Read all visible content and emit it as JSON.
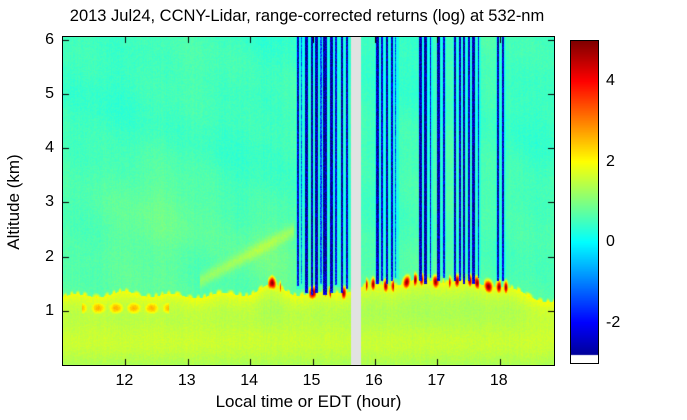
{
  "chart_data": {
    "type": "heatmap",
    "title": "2013 Jul24, CCNY-Lidar, range-corrected returns (log) at 532-nm",
    "xlabel": "Local time or EDT (hour)",
    "ylabel": "Altitude (km)",
    "xlim": [
      11.0,
      18.87
    ],
    "ylim": [
      0.0,
      6.05
    ],
    "xticks": [
      12,
      13,
      14,
      15,
      16,
      17,
      18
    ],
    "yticks": [
      1,
      2,
      3,
      4,
      5,
      6
    ],
    "clim": [
      -3,
      5
    ],
    "colormap": "jet",
    "grid": false,
    "legend": false,
    "colorbar": {
      "position": "right",
      "ticks": [
        4,
        2,
        0,
        -2
      ],
      "white_base": true
    },
    "field": {
      "description": "log range-corrected lidar backscatter: cyan clear-air background (~0.5), green-yellow aerosol boundary layer below ~1.5 km with bright yellow top edge, dark-red cloud-base peaks near 1.3-1.6 km, dark-blue vertical attenuation streaks above clouds, light-gray missing-data column near 15.7 h",
      "background_value": 0.48,
      "background_boost_near_layer": 0.24,
      "boundary_layer": {
        "hours": [
          11.0,
          12.0,
          13.0,
          14.0,
          14.35,
          14.7,
          15.1,
          15.6,
          16.0,
          16.5,
          17.0,
          17.5,
          18.0,
          18.4,
          18.87
        ],
        "top_km": [
          1.25,
          1.32,
          1.26,
          1.32,
          1.48,
          1.32,
          1.3,
          1.38,
          1.46,
          1.52,
          1.56,
          1.52,
          1.46,
          1.3,
          1.15
        ],
        "edge_value": 2.1,
        "interior_base": 1.15,
        "interior_edge_boost": 0.75
      },
      "ground_glow": {
        "alt_km": 0.4,
        "sigma_km": 0.45,
        "amplitude": 0.4
      },
      "warm_patch": {
        "hours": [
          11.3,
          12.7
        ],
        "alt_km": 1.05,
        "sigma_km": 0.16,
        "value": 2.6
      },
      "red_peak_value": 4.9,
      "red_peak_intervals_hours": [
        [
          14.28,
          14.5
        ],
        [
          14.95,
          15.05
        ],
        [
          15.2,
          15.3
        ],
        [
          15.45,
          15.58
        ],
        [
          15.85,
          16.0
        ],
        [
          16.1,
          16.3
        ],
        [
          16.42,
          16.58
        ],
        [
          16.62,
          16.78
        ],
        [
          16.9,
          17.1
        ],
        [
          17.18,
          17.38
        ],
        [
          17.48,
          17.66
        ],
        [
          17.74,
          18.02
        ],
        [
          18.06,
          18.16
        ]
      ],
      "cloud_streaks": [
        [
          14.76,
          0.03,
          -2.4,
          1.45
        ],
        [
          14.82,
          0.02,
          -1.2,
          1.5
        ],
        [
          14.9,
          0.05,
          -2.6,
          1.32
        ],
        [
          14.99,
          0.03,
          -2.6,
          1.3
        ],
        [
          15.06,
          0.04,
          -2.6,
          1.33
        ],
        [
          15.14,
          0.03,
          -1.4,
          1.5
        ],
        [
          15.2,
          0.05,
          -2.7,
          1.3
        ],
        [
          15.3,
          0.04,
          -2.6,
          1.33
        ],
        [
          15.38,
          0.03,
          -2.2,
          1.48
        ],
        [
          15.47,
          0.04,
          -2.6,
          1.33
        ],
        [
          15.55,
          0.03,
          -2.4,
          1.4
        ],
        [
          16.04,
          0.04,
          -2.6,
          1.5
        ],
        [
          16.12,
          0.03,
          -2.3,
          1.55
        ],
        [
          16.19,
          0.04,
          -2.6,
          1.5
        ],
        [
          16.27,
          0.03,
          -2.4,
          1.55
        ],
        [
          16.33,
          0.03,
          -1.5,
          1.6
        ],
        [
          16.73,
          0.04,
          -2.6,
          1.55
        ],
        [
          16.81,
          0.05,
          -2.7,
          1.5
        ],
        [
          16.89,
          0.03,
          -2.2,
          1.6
        ],
        [
          17.02,
          0.04,
          -2.6,
          1.55
        ],
        [
          17.1,
          0.03,
          -2.3,
          1.6
        ],
        [
          17.28,
          0.04,
          -2.6,
          1.55
        ],
        [
          17.36,
          0.03,
          -2.5,
          1.55
        ],
        [
          17.43,
          0.04,
          -2.7,
          1.5
        ],
        [
          17.51,
          0.03,
          -2.4,
          1.55
        ],
        [
          17.58,
          0.04,
          -2.6,
          1.5
        ],
        [
          17.66,
          0.03,
          -2.2,
          1.6
        ],
        [
          17.97,
          0.04,
          -2.6,
          1.55
        ],
        [
          18.05,
          0.03,
          -2.4,
          1.55
        ]
      ],
      "cluster_envelopes_hours": [
        [
          14.74,
          15.6
        ],
        [
          16.0,
          16.38
        ],
        [
          16.7,
          16.93
        ],
        [
          16.99,
          17.14
        ],
        [
          17.25,
          17.7
        ],
        [
          17.94,
          18.1
        ]
      ],
      "data_gap_hours": [
        15.62,
        15.77
      ],
      "gap_color": "#e2e2e2",
      "wisp_arc": {
        "hours": [
          13.2,
          14.7
        ],
        "start_km": 1.55,
        "slope_km_per_hour": 0.62,
        "sigma_km": 0.13,
        "amplitude": 0.55
      },
      "soft_patches": [
        {
          "hour": 12.3,
          "sigma_h": 1.3,
          "alt_km": 2.6,
          "sigma_km": 1.0,
          "amplitude": 0.18
        },
        {
          "hour": 14.2,
          "sigma_h": 0.5,
          "alt_km": 2.0,
          "sigma_km": 0.5,
          "amplitude": 0.15
        }
      ]
    }
  }
}
